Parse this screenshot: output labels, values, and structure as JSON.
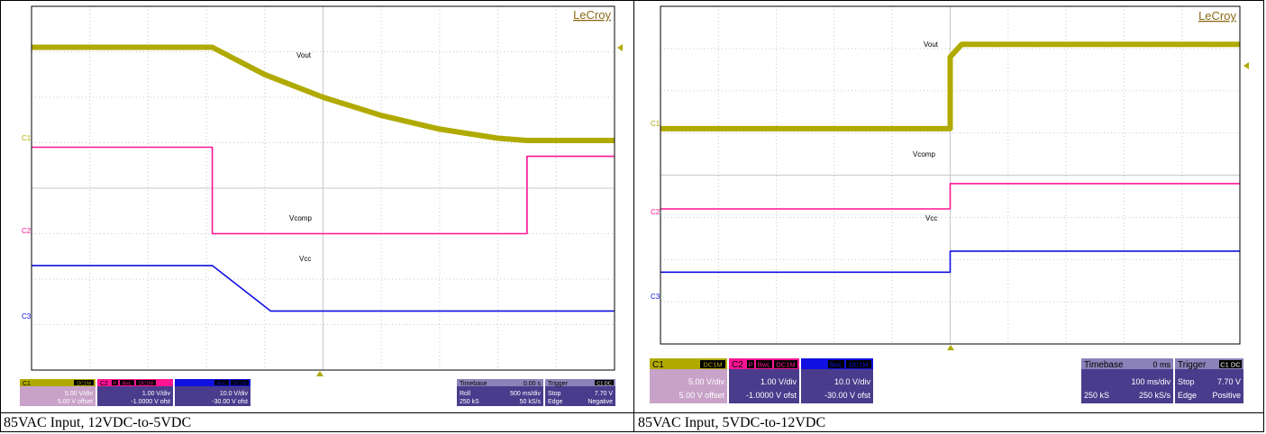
{
  "colors": {
    "c1": "#b0aa00",
    "c2": "#ff1493",
    "c3": "#1010e0",
    "grid": "#c8c8c8",
    "brand": "#8b6914"
  },
  "scopes": [
    {
      "brand": "LeCroy",
      "caption": "85VAC Input, 12VDC-to-5VDC",
      "trace_labels": {
        "vout": "Vout",
        "vcomp": "Vcomp",
        "vcc": "Vcc"
      },
      "channel_markers": {
        "c1": "C1",
        "c2": "C2",
        "c3": "C3"
      },
      "channels": [
        {
          "id": "C1",
          "coupling": "DC1M",
          "badges": [],
          "scale": "5.00 V/div",
          "offset": "5.00 V offset"
        },
        {
          "id": "C2",
          "coupling": "DC1M",
          "badges": [
            "P",
            "BwL"
          ],
          "scale": "1.00 V/div",
          "offset": "-1.0000 V ofst"
        },
        {
          "id": "C3",
          "coupling": "DC1M",
          "badges": [
            "BwL"
          ],
          "scale": "10.0 V/div",
          "offset": "-30.00 V ofst"
        }
      ],
      "timebase": {
        "label": "Timebase",
        "delay": "0.00 s",
        "mode": "Roll",
        "per_div": "500 ms/div",
        "samples": "250 kS",
        "rate": "50 kS/s"
      },
      "trigger": {
        "label": "Trigger",
        "source": "C1 DC",
        "state": "Stop",
        "level": "7.70 V",
        "type": "Edge",
        "slope": "Negative"
      }
    },
    {
      "brand": "LeCroy",
      "caption": "85VAC Input, 5VDC-to-12VDC",
      "trace_labels": {
        "vout": "Vout",
        "vcomp": "Vcomp",
        "vcc": "Vcc"
      },
      "channel_markers": {
        "c1": "C1",
        "c2": "C2",
        "c3": "C3"
      },
      "channels": [
        {
          "id": "C1",
          "coupling": "DC1M",
          "badges": [],
          "scale": "5.00 V/div",
          "offset": "5.00 V offset"
        },
        {
          "id": "C2",
          "coupling": "DC1M",
          "badges": [
            "P",
            "BwL"
          ],
          "scale": "1.00 V/div",
          "offset": "-1.0000 V ofst"
        },
        {
          "id": "C3",
          "coupling": "DC1M",
          "badges": [
            "BwL"
          ],
          "scale": "10.0 V/div",
          "offset": "-30.00 V ofst"
        }
      ],
      "timebase": {
        "label": "Timebase",
        "delay": "0 ms",
        "mode": "",
        "per_div": "100 ms/div",
        "samples": "250 kS",
        "rate": "250 kS/s"
      },
      "trigger": {
        "label": "Trigger",
        "source": "C1 DC",
        "state": "Stop",
        "level": "7.70 V",
        "type": "Edge",
        "slope": "Positive"
      }
    }
  ],
  "chart_data": [
    {
      "type": "line",
      "title": "85VAC Input, 12VDC-to-5VDC",
      "xlabel": "Time (500 ms/div)",
      "x_divisions": 10,
      "y_divisions": 8,
      "grid": true,
      "series": [
        {
          "name": "Vout",
          "x_div": [
            0,
            3.1,
            4.0,
            5.0,
            6.0,
            7.0,
            8.0,
            8.5,
            10
          ],
          "y_div": [
            7.1,
            7.1,
            6.5,
            6.0,
            5.6,
            5.3,
            5.1,
            5.05,
            5.05
          ]
        },
        {
          "name": "Vcomp",
          "x_div": [
            0,
            3.1,
            3.1,
            8.5,
            8.5,
            10
          ],
          "y_div": [
            4.9,
            4.9,
            3.0,
            3.0,
            4.7,
            4.7
          ]
        },
        {
          "name": "Vcc",
          "x_div": [
            0,
            3.1,
            4.1,
            10
          ],
          "y_div": [
            2.3,
            2.3,
            1.3,
            1.3
          ]
        }
      ]
    },
    {
      "type": "line",
      "title": "85VAC Input, 5VDC-to-12VDC",
      "xlabel": "Time (100 ms/div)",
      "x_divisions": 10,
      "y_divisions": 8,
      "grid": true,
      "series": [
        {
          "name": "Vout",
          "x_div": [
            0,
            5.0,
            5.0,
            5.2,
            10
          ],
          "y_div": [
            5.1,
            5.1,
            6.8,
            7.1,
            7.1
          ]
        },
        {
          "name": "Vcomp",
          "x_div": [
            0,
            5.0,
            5.0,
            10
          ],
          "y_div": [
            3.2,
            3.2,
            3.8,
            3.8
          ]
        },
        {
          "name": "Vcc",
          "x_div": [
            0,
            5.0,
            5.0,
            10
          ],
          "y_div": [
            1.7,
            1.7,
            2.2,
            2.2
          ]
        }
      ]
    }
  ]
}
